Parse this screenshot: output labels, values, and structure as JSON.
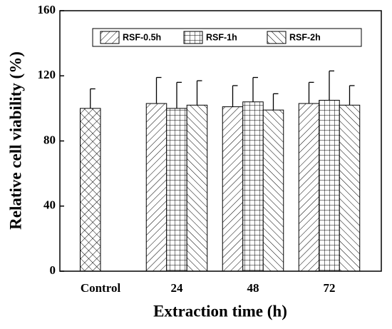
{
  "chart_data": {
    "type": "bar",
    "xlabel": "Extraction time (h)",
    "ylabel": "Relative cell viability (%)",
    "categories": [
      "Control",
      "24",
      "48",
      "72"
    ],
    "series": [
      {
        "pattern": "crosshatch",
        "values": [
          100,
          null,
          null,
          null
        ],
        "errors": [
          12,
          null,
          null,
          null
        ]
      },
      {
        "name": "RSF-0.5h",
        "pattern": "forward",
        "values": [
          null,
          103,
          101,
          103
        ],
        "errors": [
          null,
          16,
          13,
          13
        ]
      },
      {
        "name": "RSF-1h",
        "pattern": "grid",
        "values": [
          null,
          100,
          104,
          105
        ],
        "errors": [
          null,
          16,
          15,
          18
        ]
      },
      {
        "name": "RSF-2h",
        "pattern": "backward",
        "values": [
          null,
          102,
          99,
          102
        ],
        "errors": [
          null,
          15,
          10,
          12
        ]
      }
    ],
    "ylim": [
      0,
      160
    ],
    "yticks": [
      0,
      40,
      80,
      120,
      160
    ],
    "legend": "top"
  }
}
